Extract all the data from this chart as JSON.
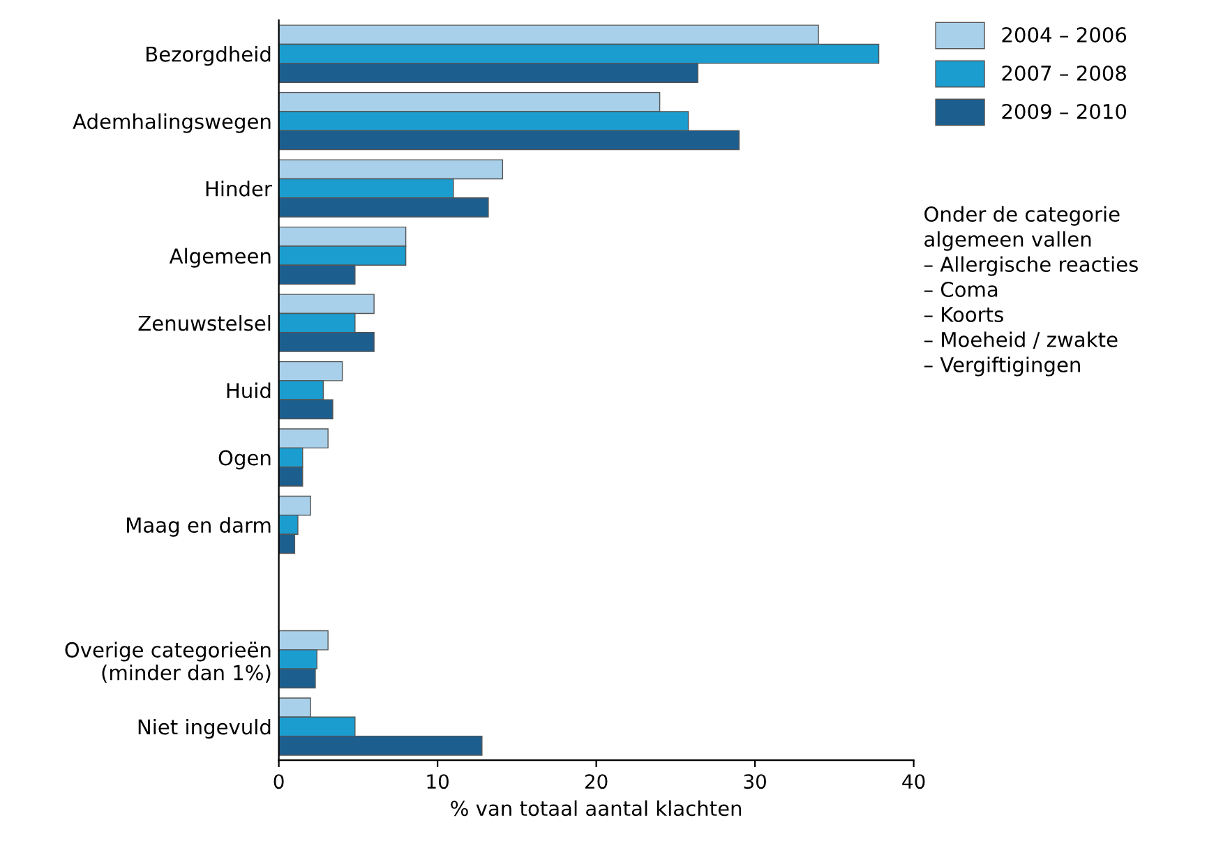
{
  "chart_data": {
    "type": "bar",
    "orientation": "horizontal",
    "xlabel": "% van totaal aantal klachten",
    "categories": [
      "Bezorgdheid",
      "Ademhalingswegen",
      "Hinder",
      "Algemeen",
      "Zenuwstelsel",
      "Huid",
      "Ogen",
      "Maag en darm",
      null,
      "Overige categorieën\n(minder dan 1%)",
      "Niet ingevuld"
    ],
    "series": [
      {
        "name": "2004 – 2006",
        "color": "#a9d0ea",
        "values": [
          34,
          24,
          14.1,
          8,
          6,
          4,
          3.1,
          2,
          null,
          3.1,
          2
        ]
      },
      {
        "name": "2007 – 2008",
        "color": "#1b9dd0",
        "values": [
          37.8,
          25.8,
          11,
          8,
          4.8,
          2.8,
          1.5,
          1.2,
          null,
          2.4,
          4.8
        ]
      },
      {
        "name": "2009 – 2010",
        "color": "#1c5e8e",
        "values": [
          26.4,
          29,
          13.2,
          4.8,
          6,
          3.4,
          1.5,
          1,
          null,
          2.3,
          12.8
        ]
      }
    ],
    "xlim": [
      0,
      40
    ],
    "xticks": [
      0,
      10,
      20,
      30,
      40
    ],
    "grid": false,
    "legend": "top right",
    "annotations": [
      "Onder de categorie\nalgemeen vallen\n– Allergische reacties\n– Coma\n– Koorts\n– Moeheid / zwakte\n– Vergiftigingen"
    ]
  }
}
